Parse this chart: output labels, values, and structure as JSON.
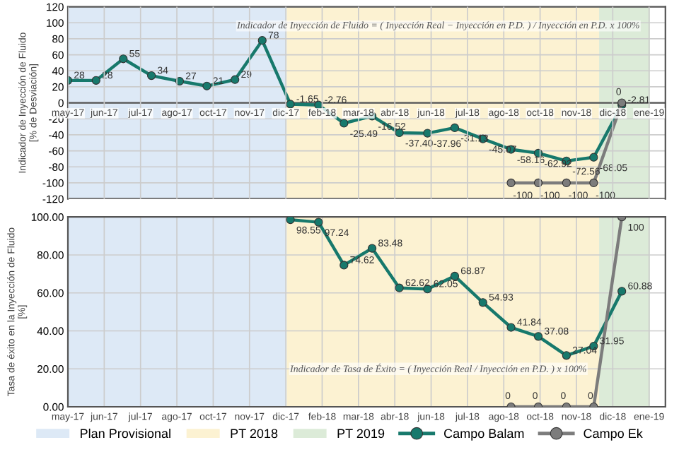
{
  "chart_data": [
    {
      "type": "line",
      "ylabel": "Indicador de Inyección de Fluido\n[% de Desviación]",
      "annotations": [
        "Indicador de Inyección de Fluido = ( Inyección Real − Inyección en P.D. ) / Inyección en P.D. x 100%"
      ],
      "xlim": [
        "2017-05-01",
        "2019-02-18"
      ],
      "ylim": [
        -120,
        120
      ],
      "yticks": [
        -120,
        -100,
        -80,
        -60,
        -40,
        -20,
        0,
        20,
        40,
        60,
        80,
        100,
        120
      ],
      "xticks": [
        {
          "value": "2017-05-01",
          "label": "may-17"
        },
        {
          "value": "2017-06-10",
          "label": "jun-17"
        },
        {
          "value": "2017-07-20",
          "label": "jul-17"
        },
        {
          "value": "2017-08-29",
          "label": "ago-17"
        },
        {
          "value": "2017-10-08",
          "label": "oct-17"
        },
        {
          "value": "2017-11-17",
          "label": "nov-17"
        },
        {
          "value": "2017-12-27",
          "label": "dic-17"
        },
        {
          "value": "2018-02-05",
          "label": "feb-18"
        },
        {
          "value": "2018-03-17",
          "label": "mar-18"
        },
        {
          "value": "2018-04-26",
          "label": "abr-18"
        },
        {
          "value": "2018-06-05",
          "label": "jun-18"
        },
        {
          "value": "2018-07-15",
          "label": "jul-18"
        },
        {
          "value": "2018-08-24",
          "label": "ago-18"
        },
        {
          "value": "2018-10-03",
          "label": "oct-18"
        },
        {
          "value": "2018-11-12",
          "label": "nov-18"
        },
        {
          "value": "2018-12-22",
          "label": "dic-18"
        },
        {
          "value": "2019-01-31",
          "label": "ene-19"
        }
      ],
      "grid": true,
      "marker": "circle",
      "legend": "bottom",
      "bands": [
        {
          "axis": "x",
          "from": "2017-05-01",
          "to": "2017-12-28",
          "label": "Plan Provisional",
          "color": "#dde9f6"
        },
        {
          "axis": "x",
          "from": "2017-12-28",
          "to": "2018-12-07",
          "label": "PT 2018",
          "color": "#fcf2d2"
        },
        {
          "axis": "x",
          "from": "2018-12-07",
          "to": "2019-02-01",
          "label": "PT 2019",
          "color": "#dcebd8"
        }
      ],
      "series": [
        {
          "name": "Campo Balam",
          "color": "#17796c",
          "x": [
            "2017-05",
            "2017-06",
            "2017-07",
            "2017-08",
            "2017-09",
            "2017-10",
            "2017-11",
            "2017-12",
            "2018-01",
            "2018-02",
            "2018-03",
            "2018-04",
            "2018-05",
            "2018-06",
            "2018-07",
            "2018-08",
            "2018-09",
            "2018-10",
            "2018-11",
            "2018-12",
            "2019-01"
          ],
          "values": [
            28,
            28,
            55,
            34,
            27,
            21,
            29,
            78,
            -1.65,
            -2.76,
            -25.49,
            -16.52,
            -37.4,
            -37.96,
            -31.13,
            -45.07,
            -58.16,
            -62.92,
            -72.56,
            -68.05,
            -2.81
          ],
          "value_labels": [
            "28",
            "28",
            "55",
            "34",
            "27",
            "21",
            "29",
            "78",
            "-1.65",
            "-2.76",
            "-25.49",
            "-16.52",
            "-37.40",
            "-37.96",
            "-31.13",
            "-45.07",
            "-58.16",
            "-62.92",
            "-72.56",
            "-68.05",
            "-2.81"
          ]
        },
        {
          "name": "Campo Ek",
          "color": "#7c7c7c",
          "x": [
            "2018-09",
            "2018-10",
            "2018-11",
            "2018-12",
            "2019-01"
          ],
          "values": [
            -100,
            -100,
            -100,
            -100,
            0
          ],
          "value_labels": [
            "-100",
            "-100",
            "-100",
            "-100",
            "0"
          ]
        }
      ]
    },
    {
      "type": "line",
      "ylabel": "Tasa de éxito en la Inyección de Fluido\n[%]",
      "annotations": [
        "Indicador de Tasa de Éxito = ( Inyección Real / Inyección en P.D. ) x 100%"
      ],
      "xlim": [
        "2017-05-01",
        "2019-02-18"
      ],
      "ylim": [
        0,
        100
      ],
      "yticks": [
        {
          "value": 0,
          "label": "0.00"
        },
        {
          "value": 20,
          "label": "20.00"
        },
        {
          "value": 40,
          "label": "40.00"
        },
        {
          "value": 60,
          "label": "60.00"
        },
        {
          "value": 80,
          "label": "80.00"
        },
        {
          "value": 100,
          "label": "100.00"
        }
      ],
      "xticks": [
        {
          "value": "2017-05-01",
          "label": "may-17"
        },
        {
          "value": "2017-06-10",
          "label": "jun-17"
        },
        {
          "value": "2017-07-20",
          "label": "jul-17"
        },
        {
          "value": "2017-08-29",
          "label": "ago-17"
        },
        {
          "value": "2017-10-08",
          "label": "oct-17"
        },
        {
          "value": "2017-11-17",
          "label": "nov-17"
        },
        {
          "value": "2017-12-27",
          "label": "dic-17"
        },
        {
          "value": "2018-02-05",
          "label": "feb-18"
        },
        {
          "value": "2018-03-17",
          "label": "mar-18"
        },
        {
          "value": "2018-04-26",
          "label": "abr-18"
        },
        {
          "value": "2018-06-05",
          "label": "jun-18"
        },
        {
          "value": "2018-07-15",
          "label": "jul-18"
        },
        {
          "value": "2018-08-24",
          "label": "ago-18"
        },
        {
          "value": "2018-10-03",
          "label": "oct-18"
        },
        {
          "value": "2018-11-12",
          "label": "nov-18"
        },
        {
          "value": "2018-12-22",
          "label": "dic-18"
        },
        {
          "value": "2019-01-31",
          "label": "ene-19"
        }
      ],
      "grid": true,
      "marker": "circle",
      "legend": "bottom",
      "bands": [
        {
          "axis": "x",
          "from": "2017-05-01",
          "to": "2017-12-28",
          "color": "#dde9f6"
        },
        {
          "axis": "x",
          "from": "2017-12-28",
          "to": "2018-12-07",
          "color": "#fcf2d2"
        },
        {
          "axis": "x",
          "from": "2018-12-07",
          "to": "2019-02-01",
          "color": "#dcebd8"
        }
      ],
      "series": [
        {
          "name": "Campo Balam",
          "color": "#17796c",
          "x": [
            "2018-01",
            "2018-02",
            "2018-03",
            "2018-04",
            "2018-05",
            "2018-06",
            "2018-07",
            "2018-08",
            "2018-09",
            "2018-10",
            "2018-11",
            "2018-12",
            "2019-01"
          ],
          "values": [
            98.55,
            97.24,
            74.62,
            83.48,
            62.62,
            62.05,
            68.87,
            54.93,
            41.84,
            37.08,
            27.04,
            31.95,
            60.88
          ],
          "value_labels": [
            "98.55",
            "97.24",
            "74.62",
            "83.48",
            "62.62",
            "62.05",
            "68.87",
            "54.93",
            "41.84",
            "37.08",
            "27.04",
            "31.95",
            "60.88"
          ]
        },
        {
          "name": "Campo Ek",
          "color": "#7c7c7c",
          "x": [
            "2018-09",
            "2018-10",
            "2018-11",
            "2018-12",
            "2019-01"
          ],
          "values": [
            0,
            0,
            0,
            0,
            100
          ],
          "value_labels": [
            "0",
            "0",
            "0",
            "0",
            "100"
          ]
        }
      ]
    }
  ]
}
